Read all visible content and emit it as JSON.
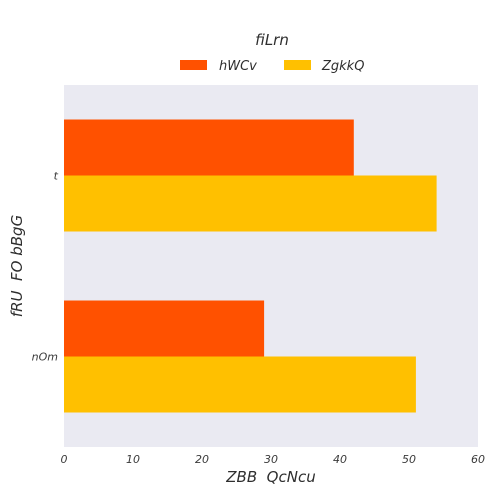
{
  "chart_data": {
    "type": "bar",
    "orientation": "horizontal",
    "title": "fiLrn",
    "xlabel": "ZBB  QcNcu",
    "ylabel": "fRU  FO bBgG",
    "categories": [
      "t",
      "nOm"
    ],
    "series": [
      {
        "name": "hWCv",
        "values": [
          42,
          29
        ],
        "color": "#ff5100"
      },
      {
        "name": "ZgkkQ",
        "values": [
          54,
          51
        ],
        "color": "#ffc000"
      }
    ],
    "xlim": [
      0,
      60
    ],
    "xticks": [
      "0",
      "10",
      "20",
      "30",
      "40",
      "50",
      "60"
    ],
    "grid": false,
    "legend": "top-center",
    "plot_background": "#eaeaf2"
  }
}
